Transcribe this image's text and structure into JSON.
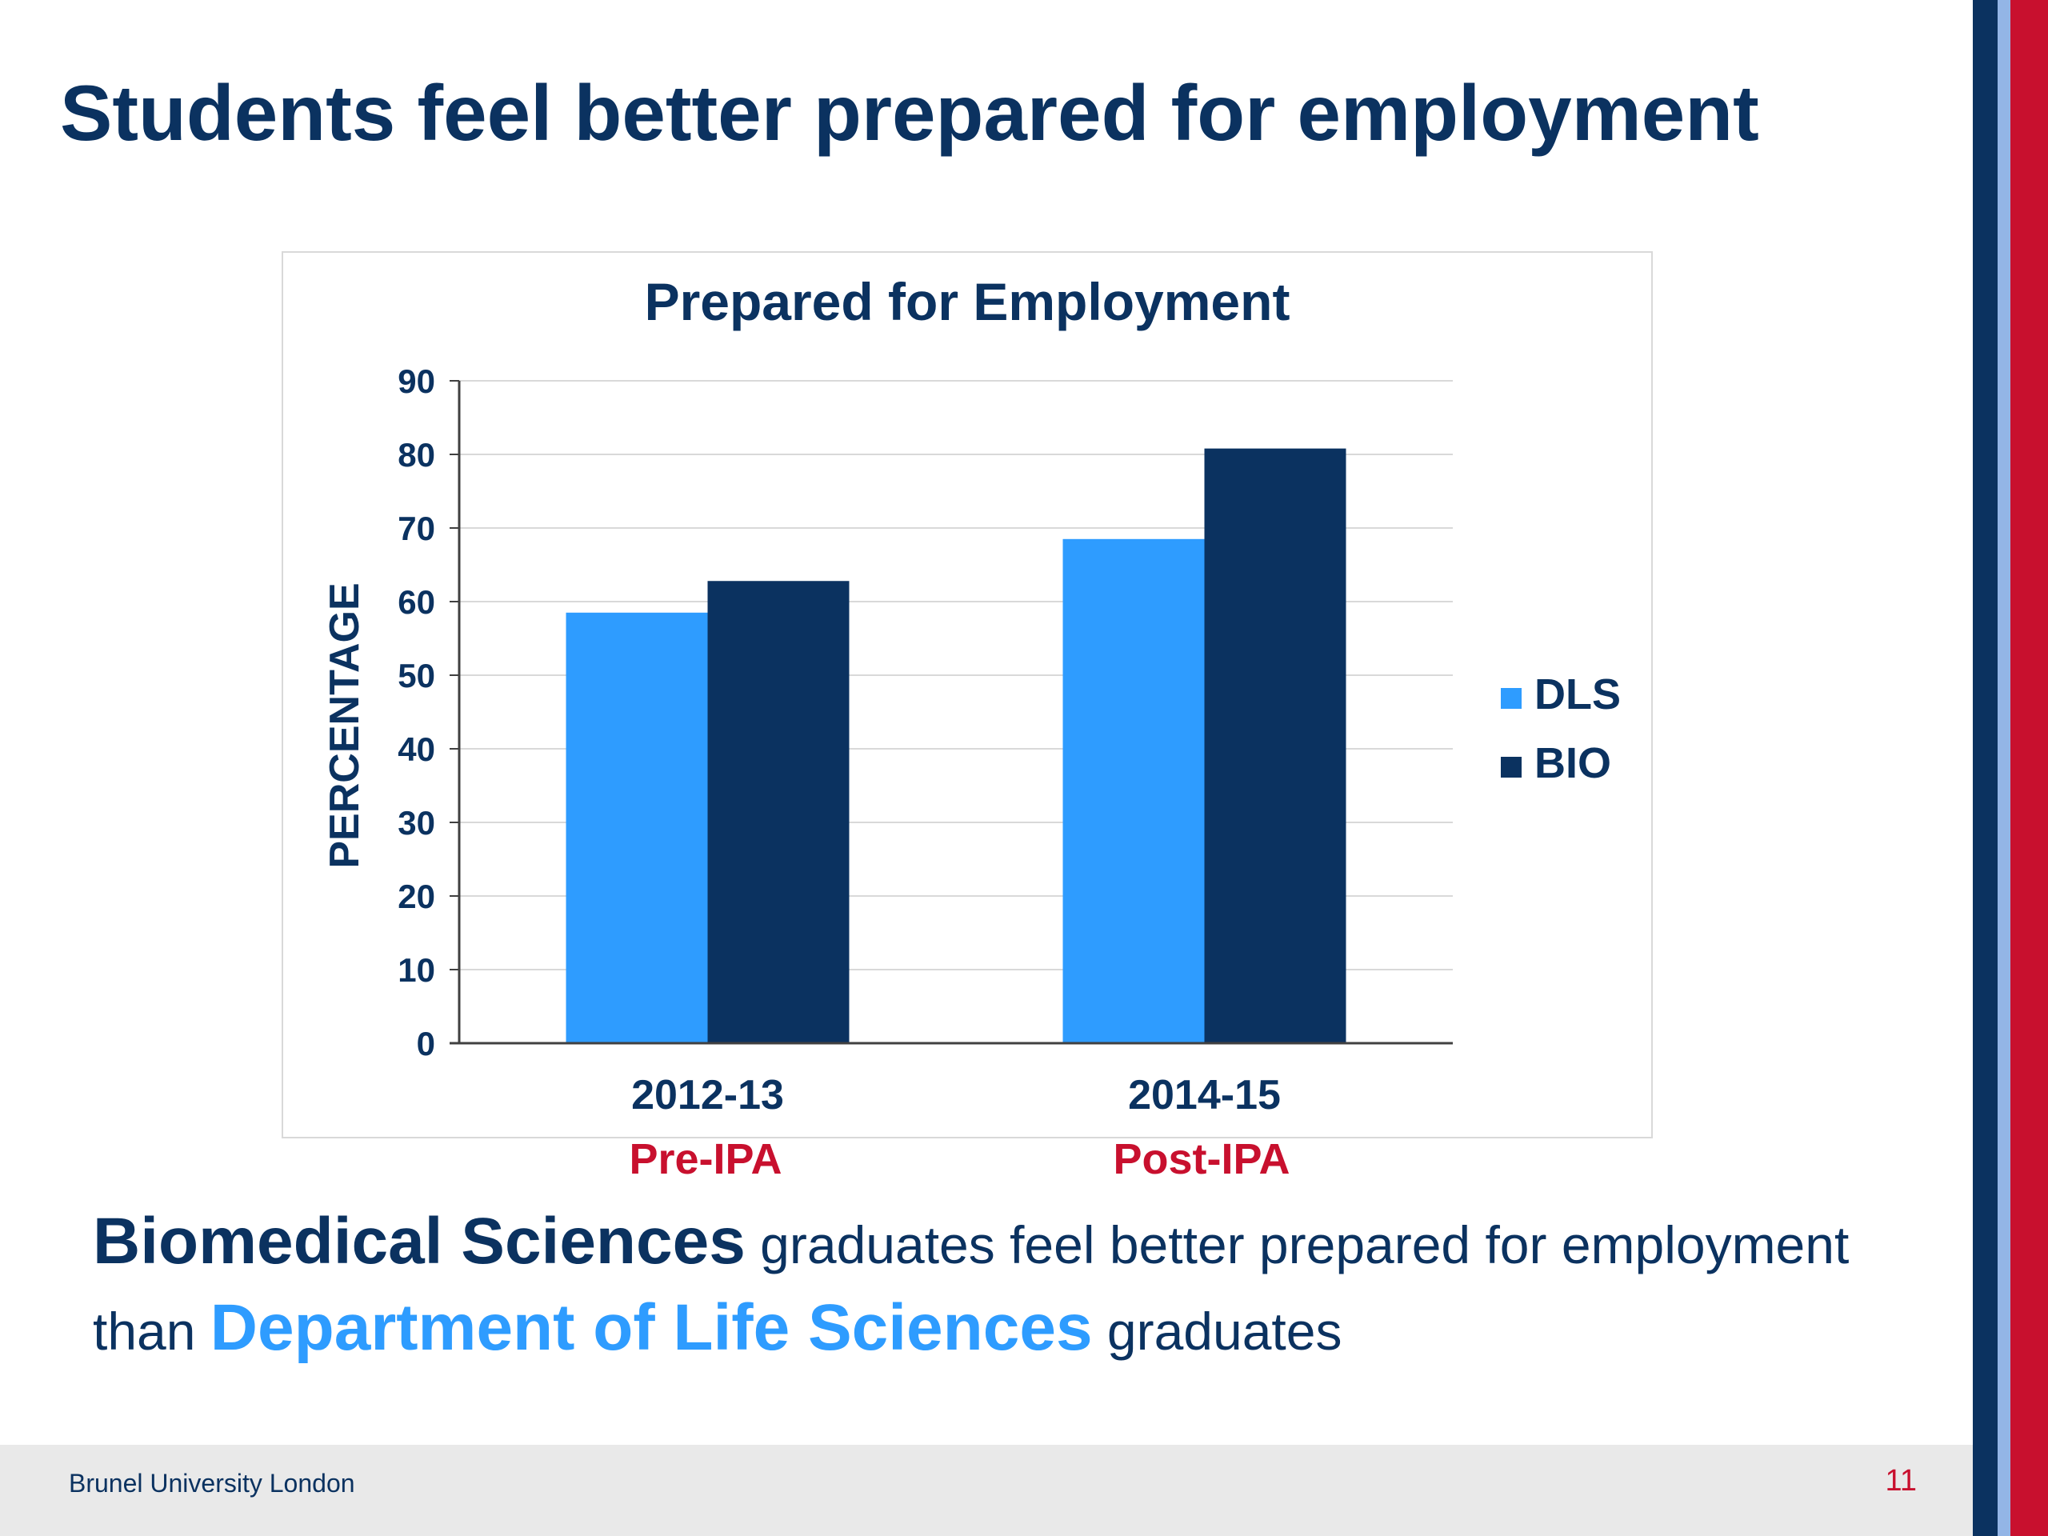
{
  "slide": {
    "title": "Students feel better prepared for employment",
    "summary": {
      "bio_name": "Biomedical Sciences",
      "text_1": " graduates feel better prepared for employment than ",
      "dls_name": "Department of Life Sciences",
      "text_2": " graduates"
    },
    "phase_labels": [
      "Pre-IPA",
      "Post-IPA"
    ],
    "footer": {
      "organization": "Brunel University London",
      "page_number": "11"
    }
  },
  "colors": {
    "brand_navy": "#0b3260",
    "dls_blue": "#2e9cff",
    "accent_red": "#c8102e",
    "stripe_light": "#93b5e6"
  },
  "chart_data": {
    "type": "bar",
    "title": "Prepared for Employment",
    "xlabel": "",
    "ylabel": "PERCENTAGE",
    "categories": [
      "2012-13",
      "2014-15"
    ],
    "series": [
      {
        "name": "DLS",
        "values": [
          58.5,
          68.5
        ],
        "color": "#2e9cff"
      },
      {
        "name": "BIO",
        "values": [
          62.8,
          80.8
        ],
        "color": "#0b3260"
      }
    ],
    "ylim": [
      0,
      90
    ],
    "yticks": [
      0,
      10,
      20,
      30,
      40,
      50,
      60,
      70,
      80,
      90
    ],
    "grid": true,
    "legend_position": "right"
  }
}
